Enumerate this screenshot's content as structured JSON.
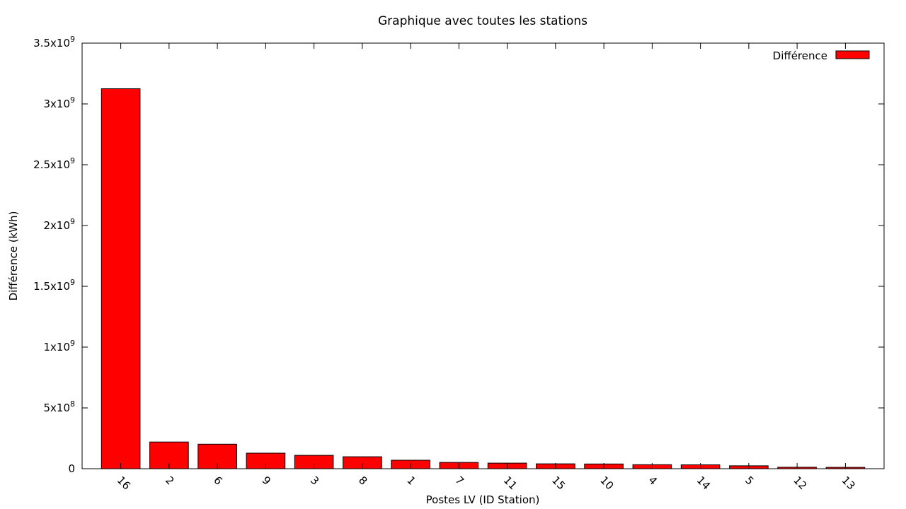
{
  "chart_data": {
    "type": "bar",
    "title": "Graphique avec toutes les stations",
    "xlabel": "Postes LV (ID Station)",
    "ylabel": "Différence (kWh)",
    "categories": [
      "16",
      "2",
      "6",
      "9",
      "3",
      "8",
      "1",
      "7",
      "11",
      "15",
      "10",
      "4",
      "14",
      "5",
      "12",
      "13"
    ],
    "series": [
      {
        "name": "Différence",
        "color": "#ff0000",
        "values": [
          3125000000,
          220000000,
          202000000,
          128000000,
          110000000,
          98000000,
          70000000,
          52000000,
          46000000,
          40000000,
          39000000,
          33000000,
          32000000,
          24000000,
          12000000,
          11000000
        ]
      }
    ],
    "ylim": [
      0,
      3500000000
    ],
    "yticks": [
      {
        "value": 0,
        "mant": "0",
        "exp": ""
      },
      {
        "value": 500000000,
        "mant": "5x10",
        "exp": "8"
      },
      {
        "value": 1000000000,
        "mant": "1x10",
        "exp": "9"
      },
      {
        "value": 1500000000,
        "mant": "1.5x10",
        "exp": "9"
      },
      {
        "value": 2000000000,
        "mant": "2x10",
        "exp": "9"
      },
      {
        "value": 2500000000,
        "mant": "2.5x10",
        "exp": "9"
      },
      {
        "value": 3000000000,
        "mant": "3x10",
        "exp": "9"
      },
      {
        "value": 3500000000,
        "mant": "3.5x10",
        "exp": "9"
      }
    ],
    "legend_position": "top-right",
    "grid": false
  }
}
